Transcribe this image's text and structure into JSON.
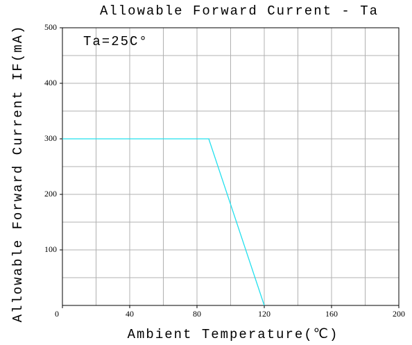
{
  "chart_data": {
    "type": "line",
    "title": "Allowable Forward Current - Ta",
    "x_label": "Ambient Temperature(℃)",
    "y_label": "Allowable Forward Current IF(mA)",
    "annotation": "Ta=25C°",
    "x": [
      0,
      87,
      120
    ],
    "series": [
      {
        "name": "IF",
        "color": "#22e0ee",
        "values": [
          300,
          300,
          0
        ]
      }
    ],
    "xlim": [
      0,
      200
    ],
    "xticks": [
      0,
      40,
      80,
      120,
      160,
      200
    ],
    "ylim": [
      0,
      500
    ],
    "yticks": [
      100,
      200,
      300,
      400,
      500
    ],
    "grid": true,
    "xgrid_step": 20,
    "ygrid_step": 50
  }
}
